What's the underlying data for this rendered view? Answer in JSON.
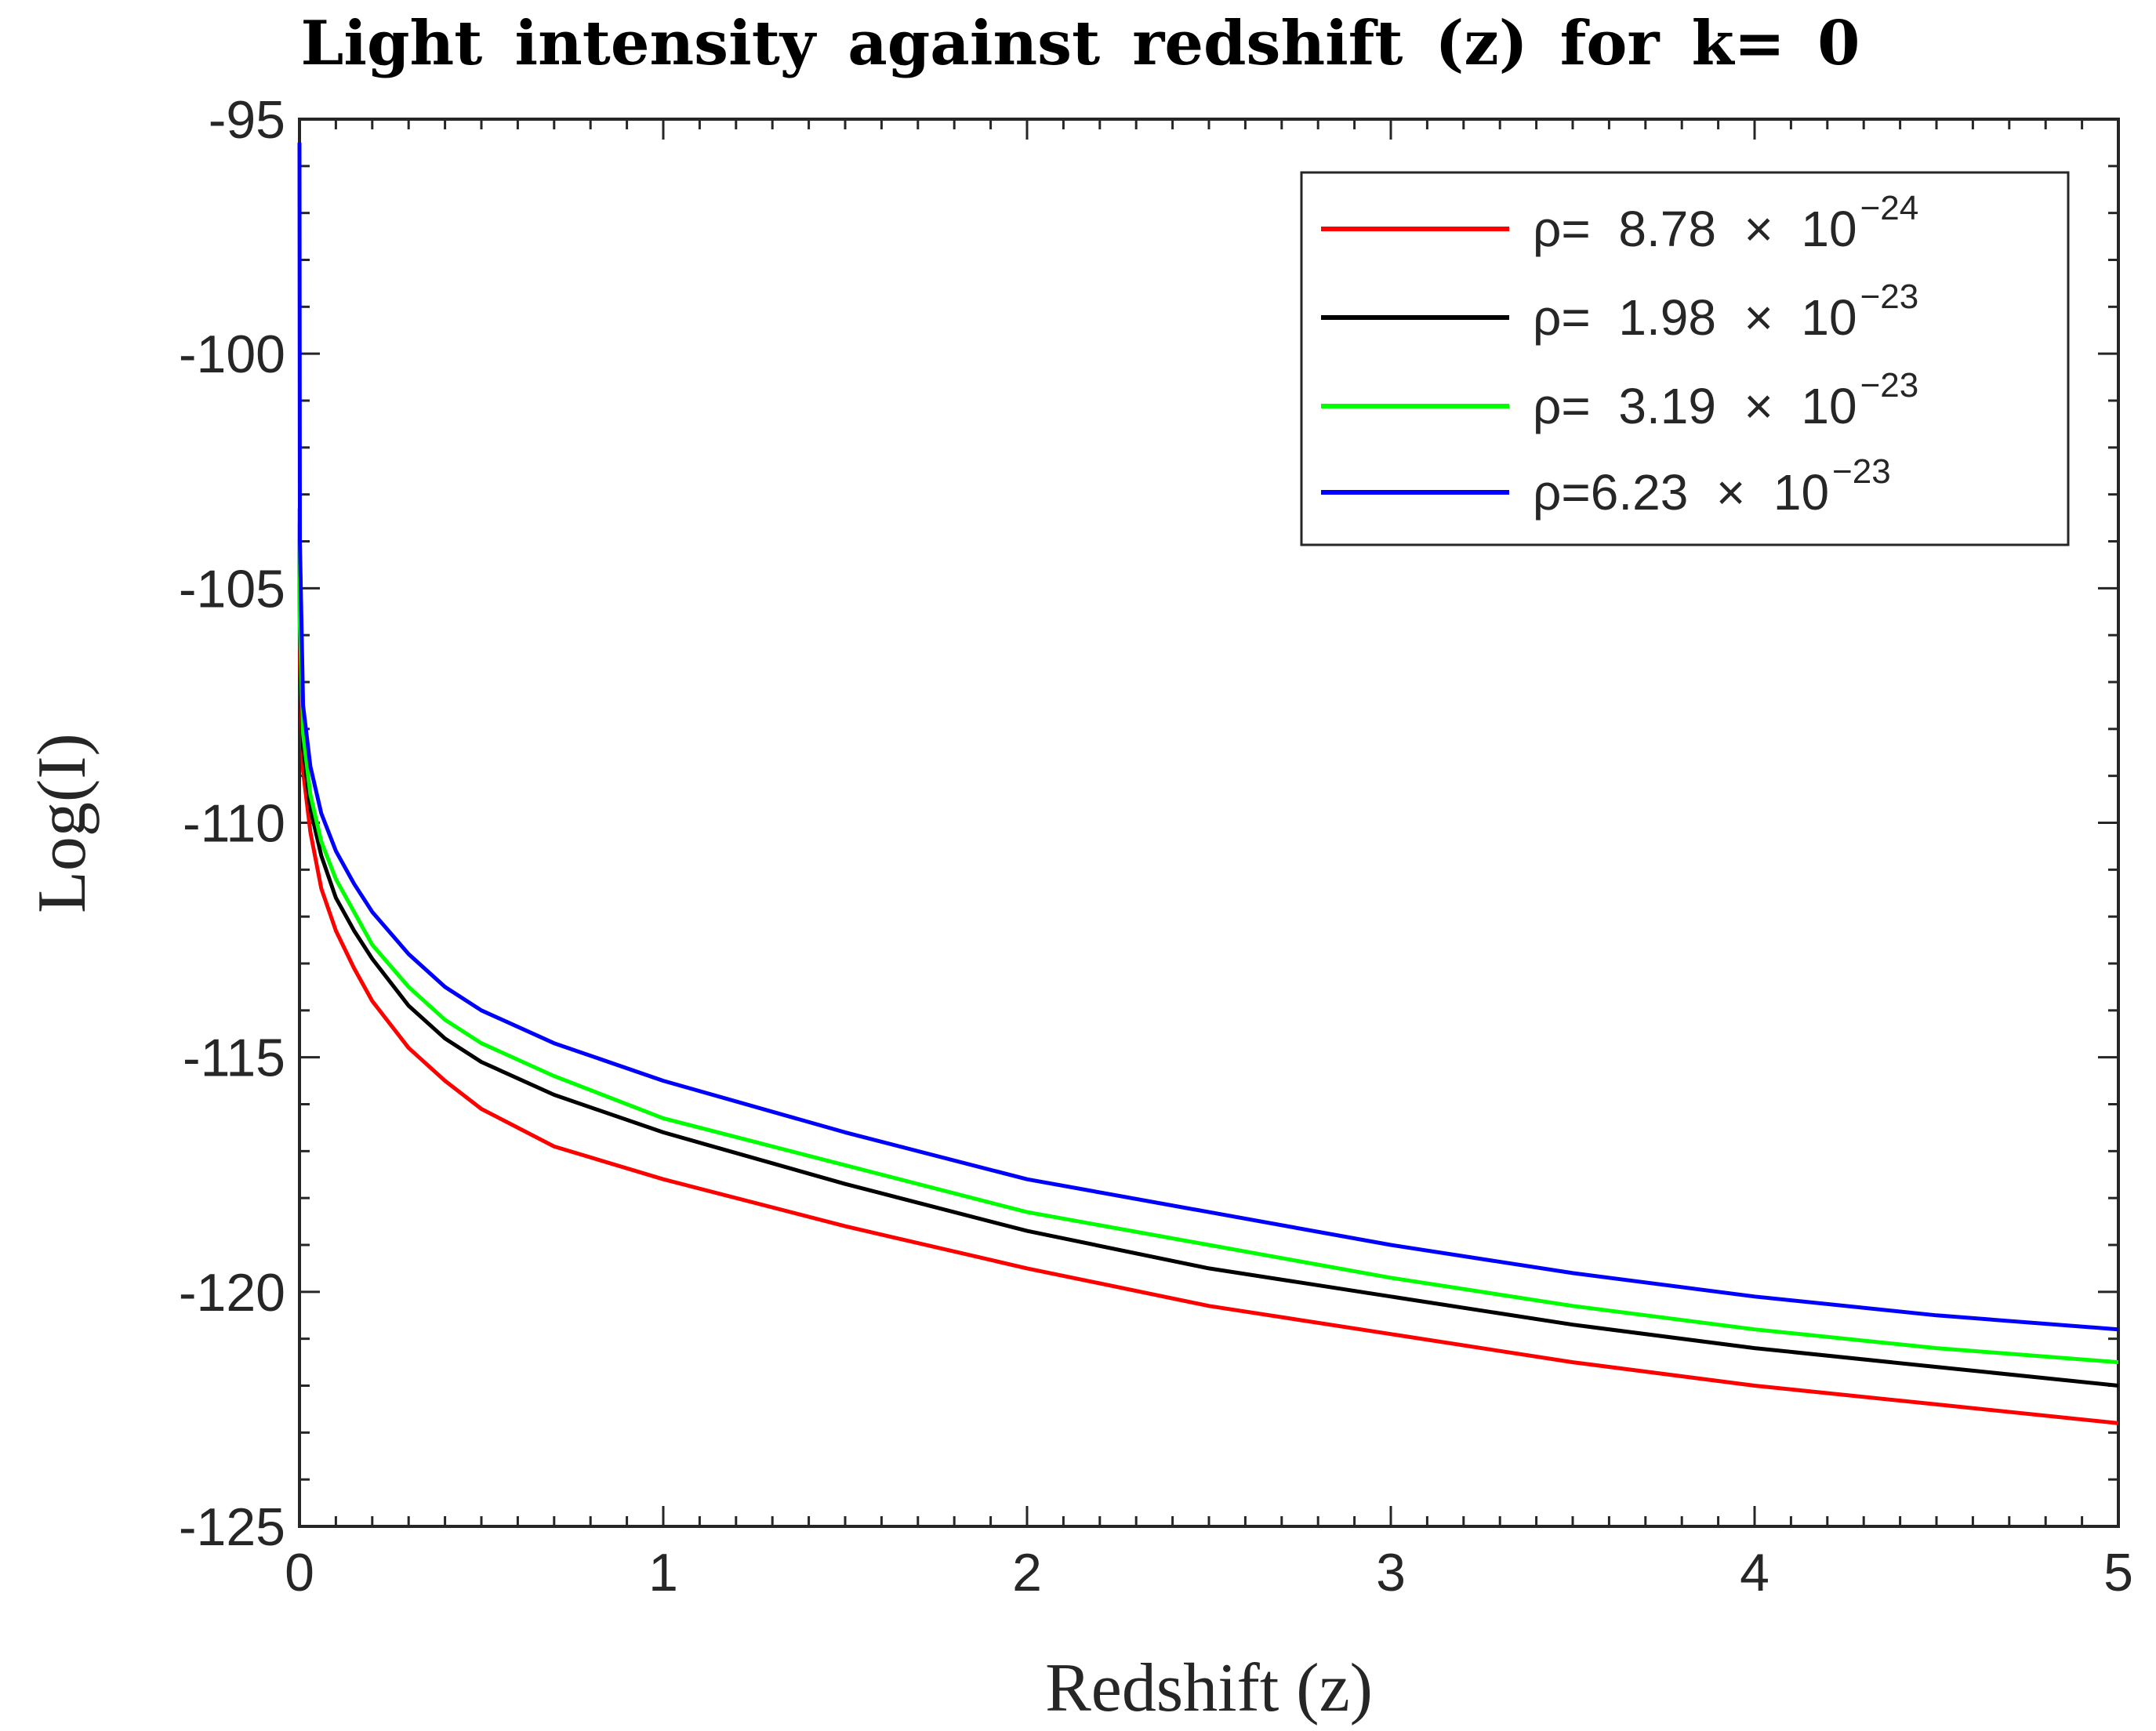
{
  "chart_data": {
    "type": "line",
    "title": "Light intensity against redshift (z) for k= 0",
    "xlabel": "Redshift (z)",
    "ylabel": "Log(I)",
    "xlim": [
      0,
      5
    ],
    "ylim": [
      -125,
      -95
    ],
    "xticks": [
      0,
      1,
      2,
      3,
      4,
      5
    ],
    "yticks": [
      -95,
      -100,
      -105,
      -110,
      -115,
      -120,
      -125
    ],
    "grid": false,
    "legend_position": "top-right",
    "series": [
      {
        "name": "ρ= 8.78 × 10^-24",
        "label_main": "ρ=  8.78  ×  10",
        "label_exp": "−24",
        "color": "#ff0000",
        "x": [
          0.0001,
          0.001,
          0.01,
          0.03,
          0.06,
          0.1,
          0.15,
          0.2,
          0.3,
          0.4,
          0.5,
          0.7,
          1.0,
          1.5,
          2.0,
          2.5,
          3.0,
          3.5,
          4.0,
          4.5,
          5.0
        ],
        "y": [
          -104.0,
          -106.5,
          -108.9,
          -110.2,
          -111.4,
          -112.3,
          -113.1,
          -113.8,
          -114.8,
          -115.5,
          -116.1,
          -116.9,
          -117.6,
          -118.6,
          -119.5,
          -120.3,
          -120.9,
          -121.5,
          -122.0,
          -122.4,
          -122.8
        ]
      },
      {
        "name": "ρ= 1.98 × 10^-23",
        "label_main": "ρ=  1.98  ×  10",
        "label_exp": "−23",
        "color": "#000000",
        "x": [
          0.0001,
          0.001,
          0.01,
          0.03,
          0.06,
          0.1,
          0.15,
          0.2,
          0.3,
          0.4,
          0.5,
          0.7,
          1.0,
          1.5,
          2.0,
          2.5,
          3.0,
          3.5,
          4.0,
          4.5,
          5.0
        ],
        "y": [
          -103.6,
          -106.1,
          -108.4,
          -109.7,
          -110.7,
          -111.6,
          -112.3,
          -112.9,
          -113.9,
          -114.6,
          -115.1,
          -115.8,
          -116.6,
          -117.7,
          -118.7,
          -119.5,
          -120.1,
          -120.7,
          -121.2,
          -121.6,
          -122.0
        ]
      },
      {
        "name": "ρ= 3.19 × 10^-23",
        "label_main": "ρ=  3.19  ×  10",
        "label_exp": "−23",
        "color": "#00ff00",
        "x": [
          0.0001,
          0.001,
          0.01,
          0.03,
          0.06,
          0.1,
          0.15,
          0.2,
          0.3,
          0.4,
          0.5,
          0.7,
          1.0,
          1.5,
          2.0,
          2.5,
          3.0,
          3.5,
          4.0,
          4.5,
          5.0
        ],
        "y": [
          -103.3,
          -105.8,
          -108.1,
          -109.4,
          -110.4,
          -111.2,
          -111.9,
          -112.6,
          -113.5,
          -114.2,
          -114.7,
          -115.4,
          -116.3,
          -117.3,
          -118.3,
          -119.0,
          -119.7,
          -120.3,
          -120.8,
          -121.2,
          -121.5
        ]
      },
      {
        "name": "ρ=6.23 × 10^-23",
        "label_main": "ρ=6.23  ×  10",
        "label_exp": "−23",
        "color": "#0000ff",
        "x": [
          0.0001,
          0.001,
          0.01,
          0.03,
          0.06,
          0.1,
          0.15,
          0.2,
          0.3,
          0.4,
          0.5,
          0.7,
          1.0,
          1.5,
          2.0,
          2.5,
          3.0,
          3.5,
          4.0,
          4.5,
          5.0
        ],
        "y": [
          -95.5,
          -104.0,
          -107.5,
          -108.8,
          -109.8,
          -110.6,
          -111.3,
          -111.9,
          -112.8,
          -113.5,
          -114.0,
          -114.7,
          -115.5,
          -116.6,
          -117.6,
          -118.3,
          -119.0,
          -119.6,
          -120.1,
          -120.5,
          -120.8
        ]
      }
    ]
  }
}
